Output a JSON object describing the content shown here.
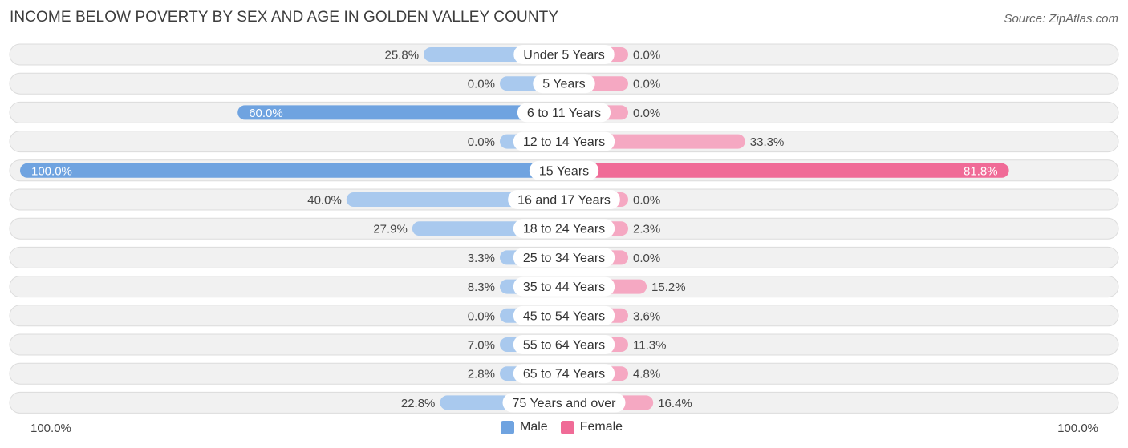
{
  "title": "INCOME BELOW POVERTY BY SEX AND AGE IN GOLDEN VALLEY COUNTY",
  "source": "Source: ZipAtlas.com",
  "axis": {
    "left_label": "100.0%",
    "right_label": "100.0%"
  },
  "legend": {
    "male": "Male",
    "female": "Female"
  },
  "colors": {
    "male": "#6fa3e0",
    "male_light": "#a9c9ee",
    "female": "#f06b97",
    "female_light": "#f5a8c2",
    "row_bg": "#f1f1f1",
    "row_border": "#dcdcdc"
  },
  "chart_data": {
    "type": "bar",
    "orientation": "horizontal-diverging",
    "categories": [
      "Under 5 Years",
      "5 Years",
      "6 to 11 Years",
      "12 to 14 Years",
      "15 Years",
      "16 and 17 Years",
      "18 to 24 Years",
      "25 to 34 Years",
      "35 to 44 Years",
      "45 to 54 Years",
      "55 to 64 Years",
      "65 to 74 Years",
      "75 Years and over"
    ],
    "series": [
      {
        "name": "Male",
        "values": [
          25.8,
          0.0,
          60.0,
          0.0,
          100.0,
          40.0,
          27.9,
          3.3,
          8.3,
          0.0,
          7.0,
          2.8,
          22.8
        ],
        "labels": [
          "25.8%",
          "0.0%",
          "60.0%",
          "0.0%",
          "100.0%",
          "40.0%",
          "27.9%",
          "3.3%",
          "8.3%",
          "0.0%",
          "7.0%",
          "2.8%",
          "22.8%"
        ]
      },
      {
        "name": "Female",
        "values": [
          0.0,
          0.0,
          0.0,
          33.3,
          81.8,
          0.0,
          2.3,
          0.0,
          15.2,
          3.6,
          11.3,
          4.8,
          16.4
        ],
        "labels": [
          "0.0%",
          "0.0%",
          "0.0%",
          "33.3%",
          "81.8%",
          "0.0%",
          "2.3%",
          "0.0%",
          "15.2%",
          "3.6%",
          "11.3%",
          "4.8%",
          "16.4%"
        ]
      }
    ],
    "xlim": [
      -100,
      100
    ],
    "legend_position": "bottom-center"
  }
}
